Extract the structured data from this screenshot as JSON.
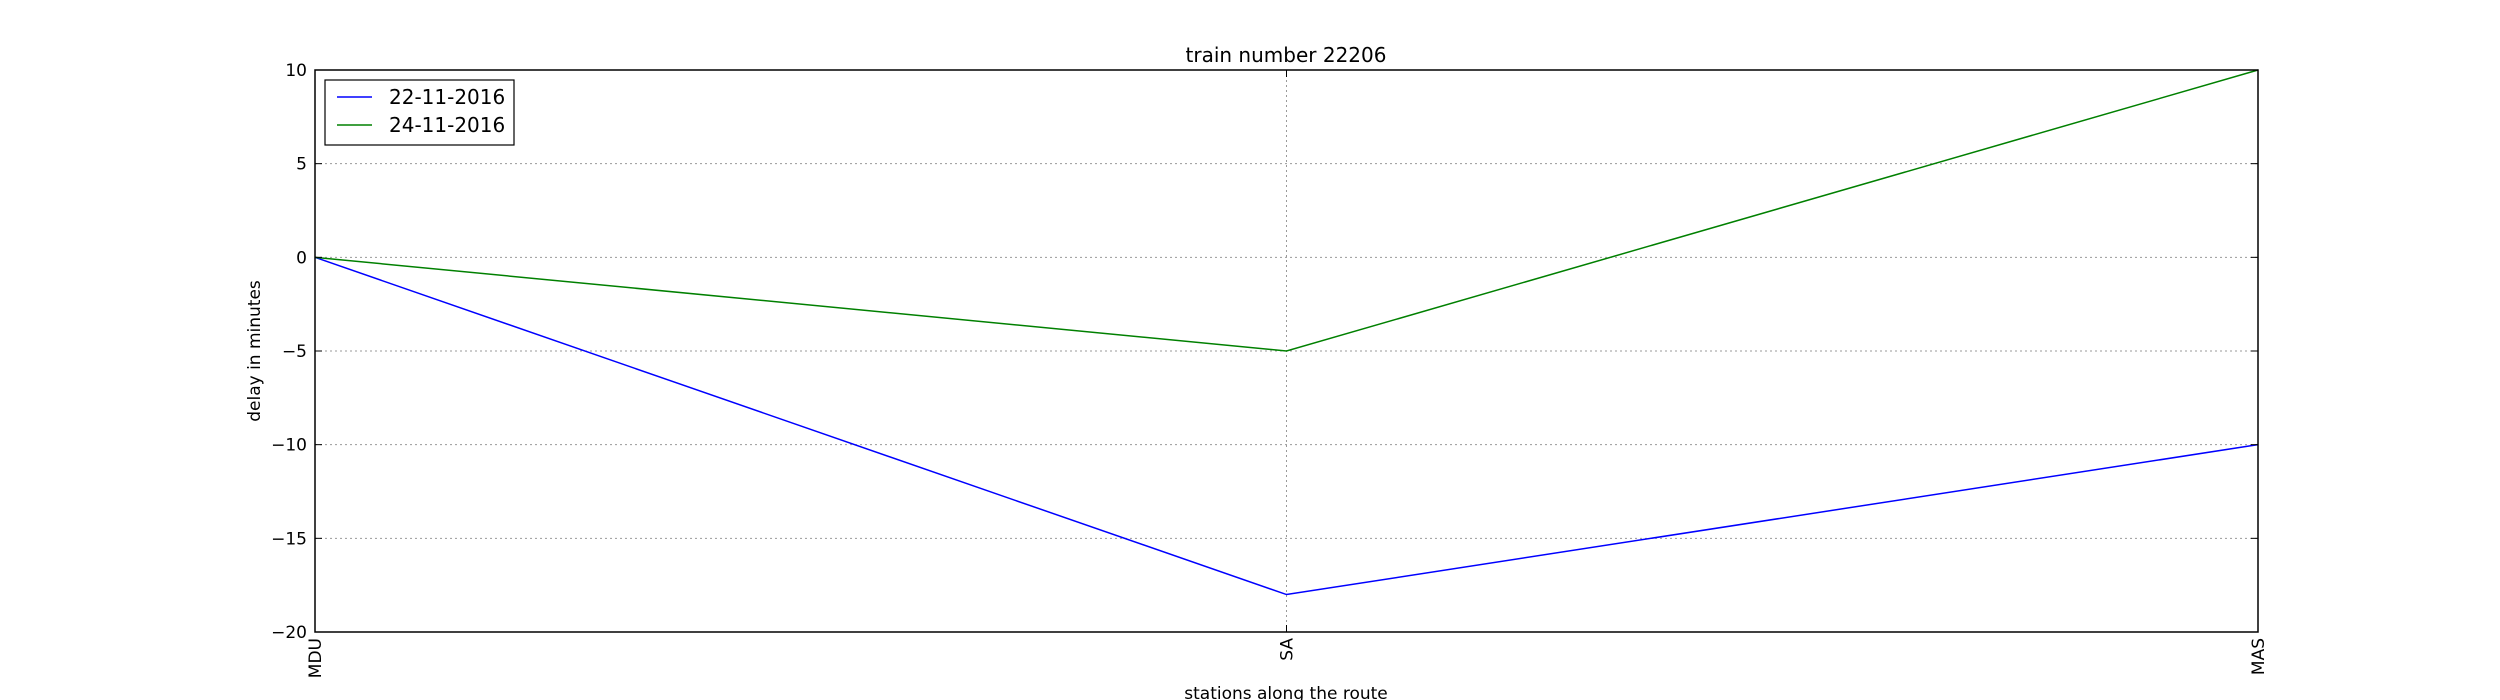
{
  "chart_data": {
    "type": "line",
    "title": "train number 22206",
    "xlabel": "stations along the route",
    "ylabel": "delay in minutes",
    "categories": [
      "MDU",
      "SA",
      "MAS"
    ],
    "ylim": [
      -20,
      10
    ],
    "yticks": [
      -20,
      -15,
      -10,
      -5,
      0,
      5,
      10
    ],
    "yticklabels": [
      "−20",
      "−15",
      "−10",
      "−5",
      "0",
      "5",
      "10"
    ],
    "grid": true,
    "legend_position": "top-left",
    "series": [
      {
        "name": "22-11-2016",
        "values": [
          0,
          -18,
          -10
        ],
        "color": "#0000ff"
      },
      {
        "name": "24-11-2016",
        "values": [
          0,
          -5,
          10
        ],
        "color": "#008000"
      }
    ]
  }
}
